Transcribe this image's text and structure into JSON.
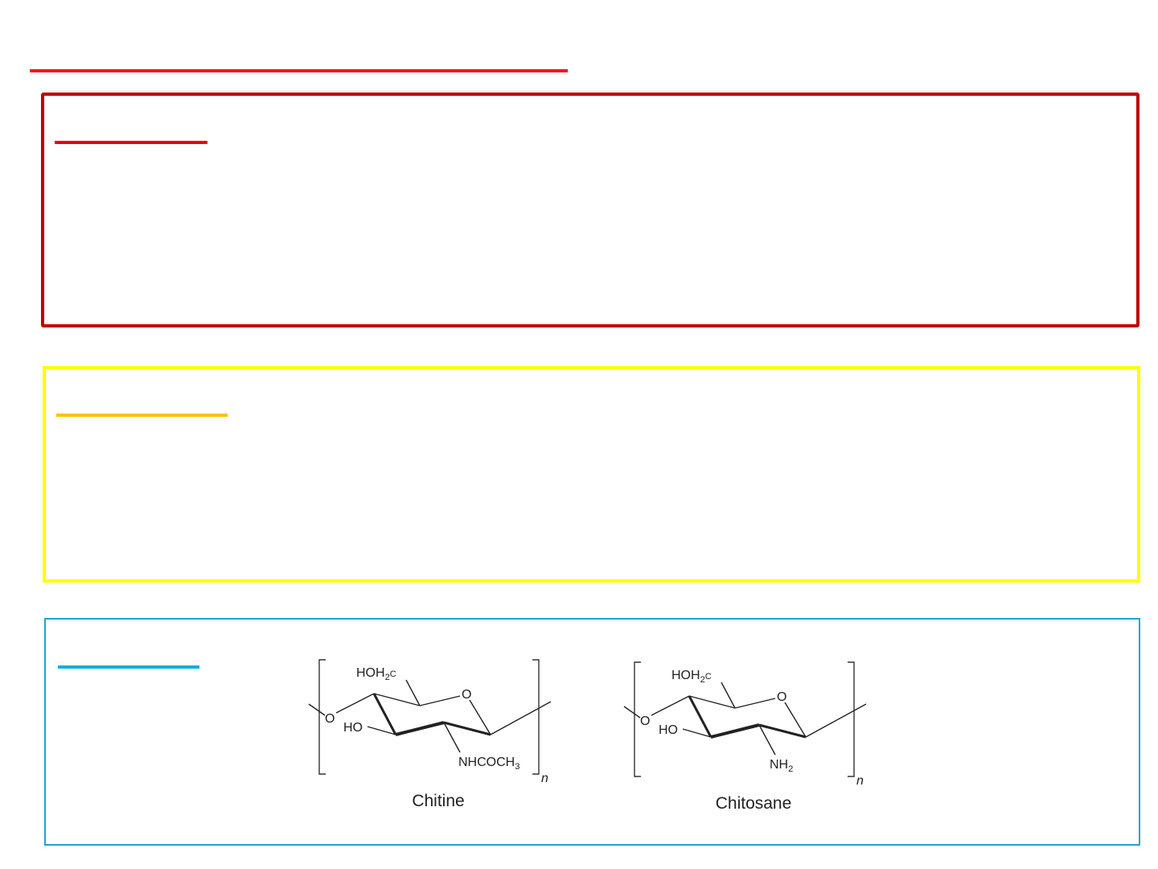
{
  "colors": {
    "title_rule": "#ff1010",
    "box1": "#c00000",
    "box1_rule": "#ee0000",
    "box2": "#ffff00",
    "box2_rule": "#ffc000",
    "box3": "#1aa5d8",
    "box3_rule": "#12aee0"
  },
  "figure": {
    "chitine": {
      "label": "Chitine",
      "ch2oh": "HOH",
      "ch2oh_sub": "2",
      "ch2oh_end": "C",
      "ring_o": "O",
      "link_o": "O",
      "ho": "HO",
      "sub": "NHCOCH",
      "sub_sub": "3",
      "n": "n"
    },
    "chitosane": {
      "label": "Chitosane",
      "ch2oh": "HOH",
      "ch2oh_sub": "2",
      "ch2oh_end": "C",
      "ring_o": "O",
      "link_o": "O",
      "ho": "HO",
      "sub": "NH",
      "sub_sub": "2",
      "n": "n"
    }
  }
}
